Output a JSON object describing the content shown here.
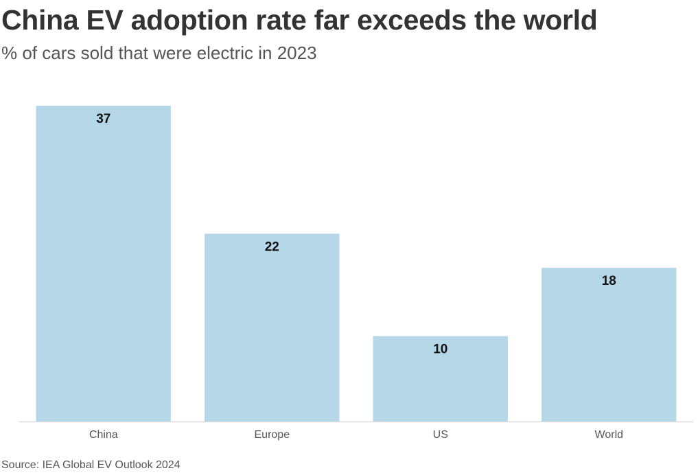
{
  "title": "China EV adoption rate far exceeds the world",
  "subtitle": "% of cars sold that were electric in 2023",
  "source": "Source: IEA Global EV Outlook 2024",
  "colors": {
    "bar": "#b6d7e8",
    "label": "#111111",
    "axis": "#dddddd",
    "tick": "#555555"
  },
  "chart_data": {
    "type": "bar",
    "title": "China EV adoption rate far exceeds the world",
    "subtitle": "% of cars sold that were electric in 2023",
    "xlabel": "",
    "ylabel": "",
    "categories": [
      "China",
      "Europe",
      "US",
      "World"
    ],
    "values": [
      37,
      22,
      10,
      18
    ],
    "ylim": [
      0,
      37
    ],
    "grid": false,
    "legend": "none"
  }
}
